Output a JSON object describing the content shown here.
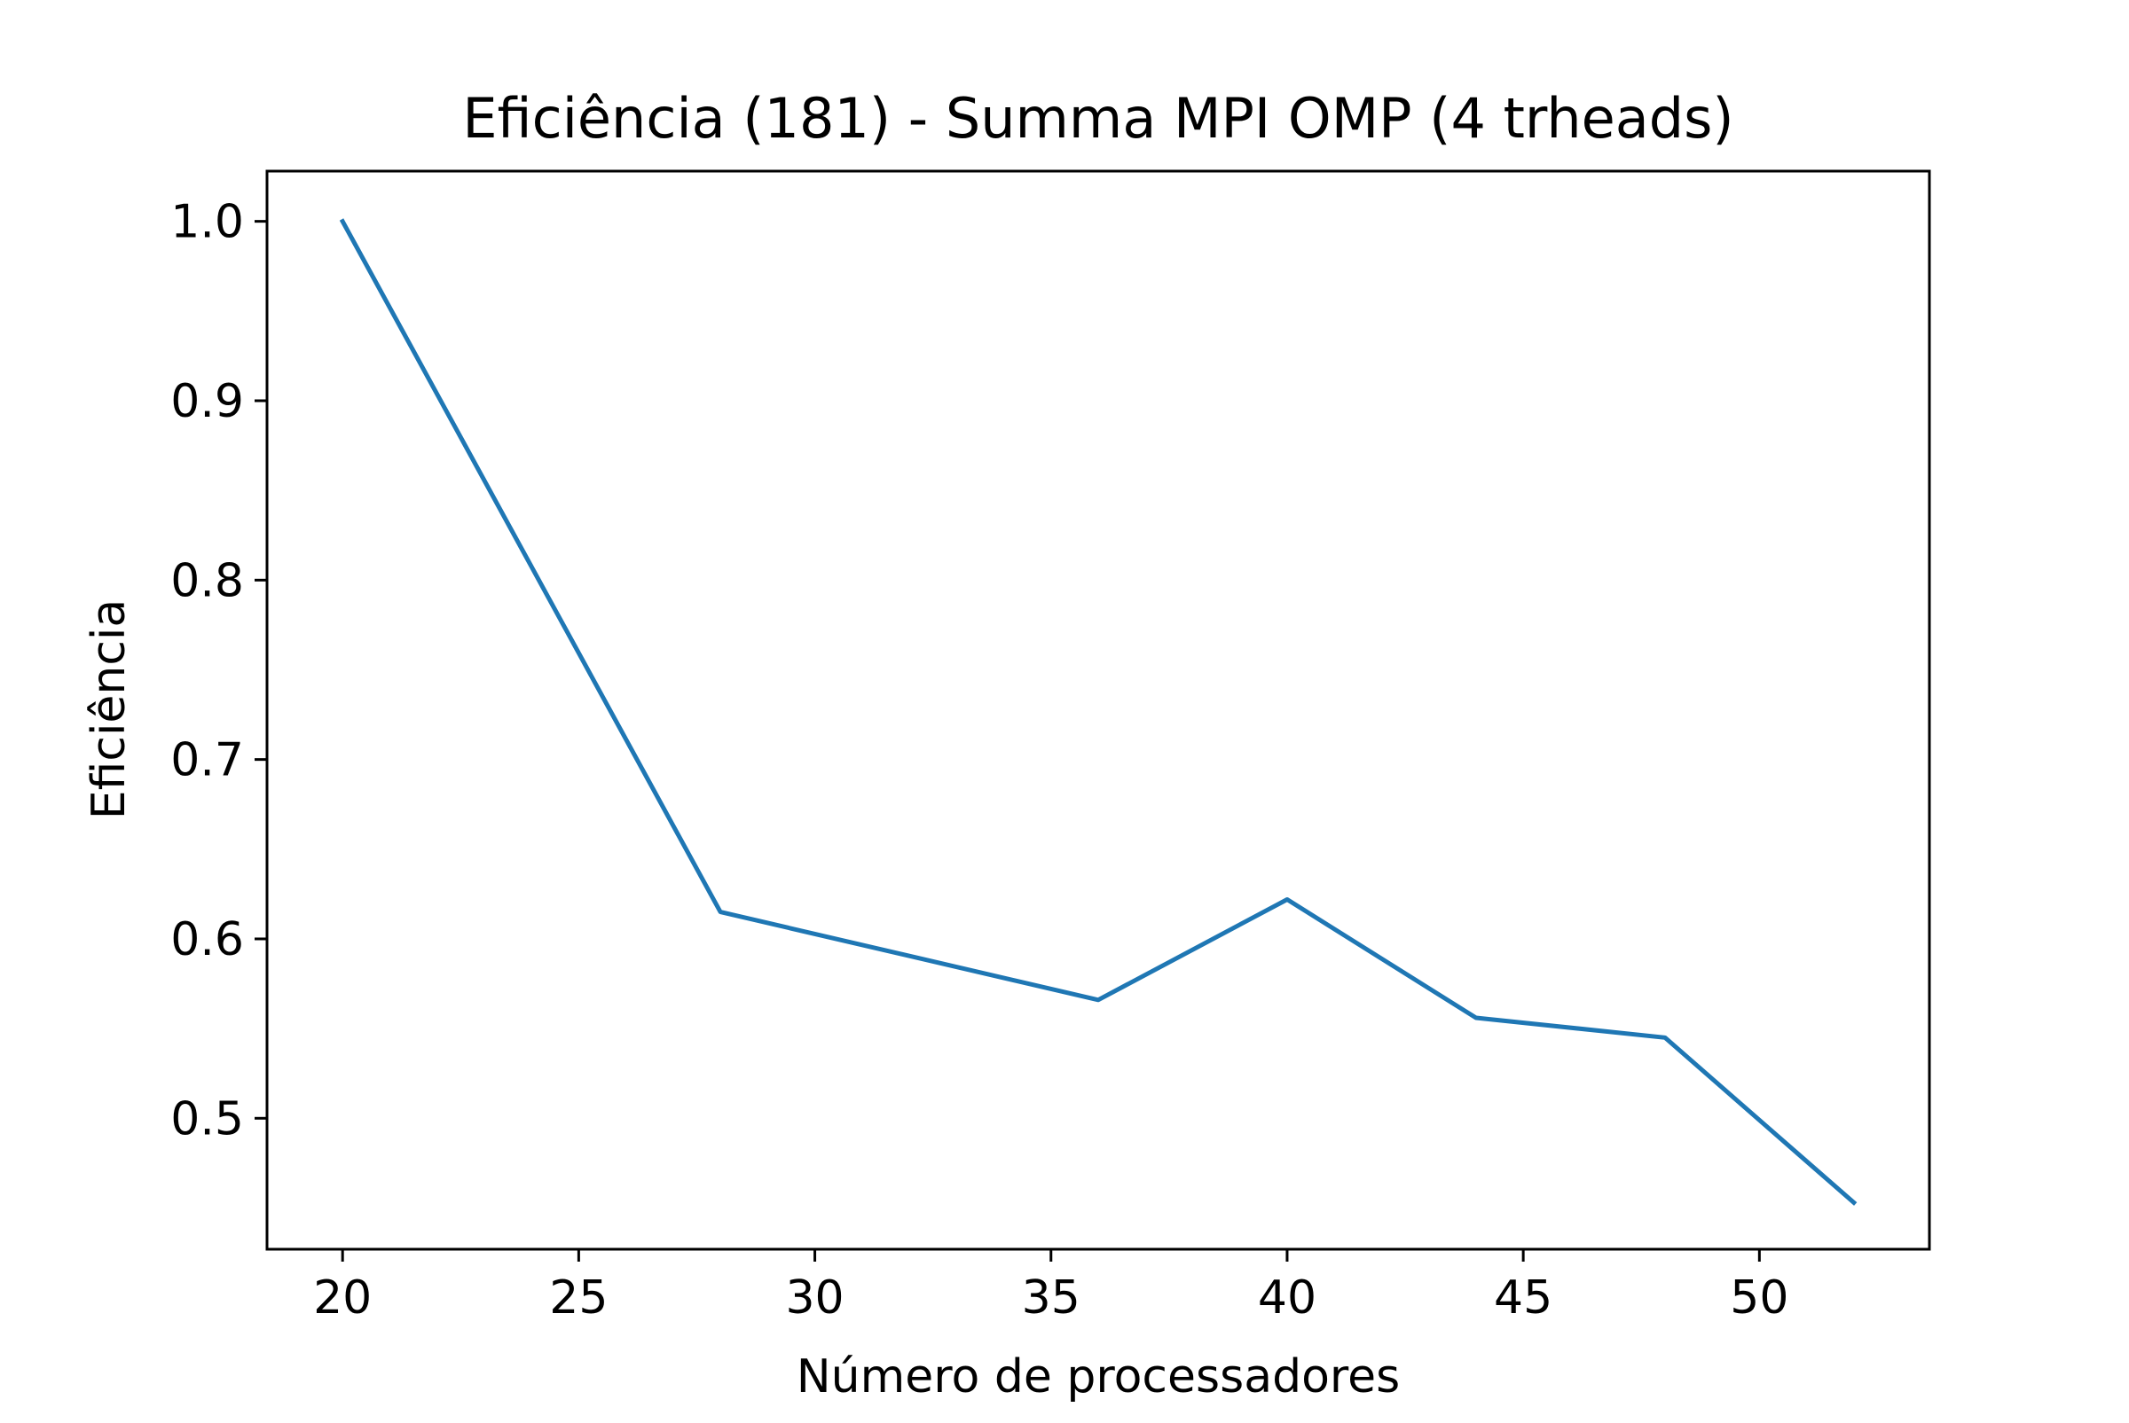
{
  "chart_data": {
    "type": "line",
    "title": "Eficiência (181) - Summa MPI OMP (4 trheads)",
    "xlabel": "Número de processadores",
    "ylabel": "Eficiência",
    "x": [
      20,
      28,
      36,
      40,
      44,
      48,
      52
    ],
    "series": [
      {
        "values": [
          1.0,
          0.615,
          0.566,
          0.622,
          0.556,
          0.545,
          0.453
        ],
        "color": "#1f77b4"
      }
    ],
    "xlim": [
      18.4,
      53.6
    ],
    "ylim": [
      0.427,
      1.028
    ],
    "xticks": [
      20,
      25,
      30,
      35,
      40,
      45,
      50
    ],
    "xtick_labels": [
      "20",
      "25",
      "30",
      "35",
      "40",
      "45",
      "50"
    ],
    "yticks": [
      0.5,
      0.6,
      0.7,
      0.8,
      0.9,
      1.0
    ],
    "ytick_labels": [
      "0.5",
      "0.6",
      "0.7",
      "0.8",
      "0.9",
      "1.0"
    ],
    "grid": false,
    "legend": "none"
  }
}
